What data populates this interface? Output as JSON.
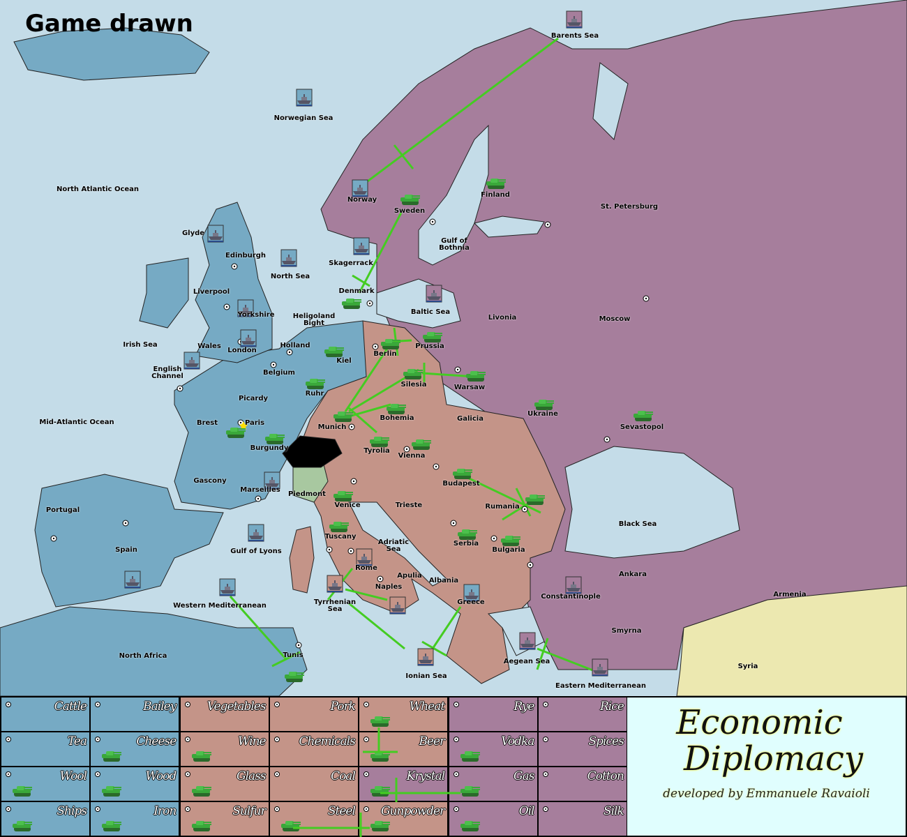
{
  "title": "Game drawn",
  "colors": {
    "sea": "#c4dce8",
    "blue_power": "#76aac4",
    "salmon_power": "#c49488",
    "purple_power": "#a67e9c",
    "neutral_syria": "#ece8b0",
    "piedmont": "#a8c8a0",
    "switzerland": "#000000",
    "orders": "#44cc22",
    "unit_green": "#2f9a2f"
  },
  "provinces": [
    {
      "name": "Barents Sea",
      "unit": "fleet"
    },
    {
      "name": "Norwegian Sea",
      "unit": "fleet"
    },
    {
      "name": "North Atlantic Ocean",
      "unit": null
    },
    {
      "name": "Norway",
      "unit": "fleet"
    },
    {
      "name": "Sweden",
      "unit": "army"
    },
    {
      "name": "Finland",
      "unit": "army"
    },
    {
      "name": "St. Petersburg",
      "unit": null
    },
    {
      "name": "Gulf of\nBothnia",
      "unit": null
    },
    {
      "name": "Glyde",
      "unit": "fleet"
    },
    {
      "name": "Edinburgh",
      "unit": null
    },
    {
      "name": "North Sea",
      "unit": "fleet"
    },
    {
      "name": "Skagerrack",
      "unit": "fleet"
    },
    {
      "name": "Liverpool",
      "unit": null
    },
    {
      "name": "Yorkshire",
      "unit": "fleet"
    },
    {
      "name": "Denmark",
      "unit": "army"
    },
    {
      "name": "Baltic Sea",
      "unit": "fleet"
    },
    {
      "name": "Livonia",
      "unit": null
    },
    {
      "name": "Moscow",
      "unit": null
    },
    {
      "name": "Heligoland\nBight",
      "unit": null
    },
    {
      "name": "Irish Sea",
      "unit": null
    },
    {
      "name": "Wales",
      "unit": null
    },
    {
      "name": "London",
      "unit": "fleet"
    },
    {
      "name": "Holland",
      "unit": null
    },
    {
      "name": "Prussia",
      "unit": "army"
    },
    {
      "name": "Kiel",
      "unit": "army"
    },
    {
      "name": "Berlin",
      "unit": "army"
    },
    {
      "name": "English\nChannel",
      "unit": "fleet"
    },
    {
      "name": "Belgium",
      "unit": null
    },
    {
      "name": "Silesia",
      "unit": "army"
    },
    {
      "name": "Warsaw",
      "unit": "army"
    },
    {
      "name": "Ruhr",
      "unit": "army"
    },
    {
      "name": "Picardy",
      "unit": null
    },
    {
      "name": "Ukraine",
      "unit": "army"
    },
    {
      "name": "Bohemia",
      "unit": "army"
    },
    {
      "name": "Galicia",
      "unit": null
    },
    {
      "name": "Brest",
      "unit": "army"
    },
    {
      "name": "Paris",
      "unit": null
    },
    {
      "name": "Mid-Atlantic Ocean",
      "unit": null
    },
    {
      "name": "Munich",
      "unit": "army"
    },
    {
      "name": "Sevastopol",
      "unit": "army"
    },
    {
      "name": "Burgundy",
      "unit": "army"
    },
    {
      "name": "Tyrolia",
      "unit": "army"
    },
    {
      "name": "Vienna",
      "unit": "army"
    },
    {
      "name": "Gascony",
      "unit": null
    },
    {
      "name": "Budapest",
      "unit": "army"
    },
    {
      "name": "Marseilles",
      "unit": "fleet"
    },
    {
      "name": "Piedmont",
      "unit": null
    },
    {
      "name": "Venice",
      "unit": "army"
    },
    {
      "name": "Trieste",
      "unit": null
    },
    {
      "name": "Rumania",
      "unit": "army"
    },
    {
      "name": "Portugal",
      "unit": null
    },
    {
      "name": "Black Sea",
      "unit": null
    },
    {
      "name": "Tuscany",
      "unit": "army"
    },
    {
      "name": "Serbia",
      "unit": "army"
    },
    {
      "name": "Adriatic\nSea",
      "unit": null
    },
    {
      "name": "Bulgaria",
      "unit": "army"
    },
    {
      "name": "Spain",
      "unit": "fleet"
    },
    {
      "name": "Gulf of Lyons",
      "unit": "fleet"
    },
    {
      "name": "Rome",
      "unit": "fleet"
    },
    {
      "name": "Apulia",
      "unit": null
    },
    {
      "name": "Ankara",
      "unit": null
    },
    {
      "name": "Albania",
      "unit": null
    },
    {
      "name": "Naples",
      "unit": "fleet"
    },
    {
      "name": "Constantinople",
      "unit": "fleet"
    },
    {
      "name": "Armenia",
      "unit": null
    },
    {
      "name": "Tyrrhenian\nSea",
      "unit": "fleet"
    },
    {
      "name": "Greece",
      "unit": "fleet"
    },
    {
      "name": "Western Mediterranean",
      "unit": "fleet"
    },
    {
      "name": "Smyrna",
      "unit": null
    },
    {
      "name": "North Africa",
      "unit": null
    },
    {
      "name": "Tunis",
      "unit": "army"
    },
    {
      "name": "Aegean Sea",
      "unit": "fleet"
    },
    {
      "name": "Syria",
      "unit": null
    },
    {
      "name": "Ionian Sea",
      "unit": "fleet"
    },
    {
      "name": "Eastern Mediterranean",
      "unit": "fleet"
    }
  ],
  "resources": [
    {
      "label": "Cattle",
      "owner": "blue",
      "unit": null
    },
    {
      "label": "Bailey",
      "owner": "blue",
      "unit": null
    },
    {
      "label": "Vegetables",
      "owner": "salmon",
      "unit": null
    },
    {
      "label": "Pork",
      "owner": "salmon",
      "unit": null
    },
    {
      "label": "Wheat",
      "owner": "salmon",
      "unit": "army"
    },
    {
      "label": "Rye",
      "owner": "purple",
      "unit": null
    },
    {
      "label": "Rice",
      "owner": "purple",
      "unit": null
    },
    {
      "label": "Tea",
      "owner": "blue",
      "unit": null
    },
    {
      "label": "Cheese",
      "owner": "blue",
      "unit": "army"
    },
    {
      "label": "Wine",
      "owner": "salmon",
      "unit": "army"
    },
    {
      "label": "Chemicals",
      "owner": "salmon",
      "unit": null
    },
    {
      "label": "Beer",
      "owner": "salmon",
      "unit": "army"
    },
    {
      "label": "Vodka",
      "owner": "purple",
      "unit": "army"
    },
    {
      "label": "Spices",
      "owner": "purple",
      "unit": null
    },
    {
      "label": "Wool",
      "owner": "blue",
      "unit": "army"
    },
    {
      "label": "Wood",
      "owner": "blue",
      "unit": "army"
    },
    {
      "label": "Glass",
      "owner": "salmon",
      "unit": "army"
    },
    {
      "label": "Coal",
      "owner": "salmon",
      "unit": null
    },
    {
      "label": "Krystal",
      "owner": "purple",
      "unit": "army"
    },
    {
      "label": "Gas",
      "owner": "purple",
      "unit": "army"
    },
    {
      "label": "Cotton",
      "owner": "purple",
      "unit": null
    },
    {
      "label": "Ships",
      "owner": "blue",
      "unit": "army"
    },
    {
      "label": "Iron",
      "owner": "blue",
      "unit": "army"
    },
    {
      "label": "Sulfur",
      "owner": "salmon",
      "unit": "army"
    },
    {
      "label": "Steel",
      "owner": "salmon",
      "unit": "army"
    },
    {
      "label": "Gunpowder",
      "owner": "salmon",
      "unit": "army"
    },
    {
      "label": "Oil",
      "owner": "purple",
      "unit": "army"
    },
    {
      "label": "Silk",
      "owner": "purple",
      "unit": null
    }
  ],
  "logo": {
    "line1": "Economic",
    "line2": "Diplomacy",
    "credit": "developed by Emmanuele Ravaioli"
  }
}
